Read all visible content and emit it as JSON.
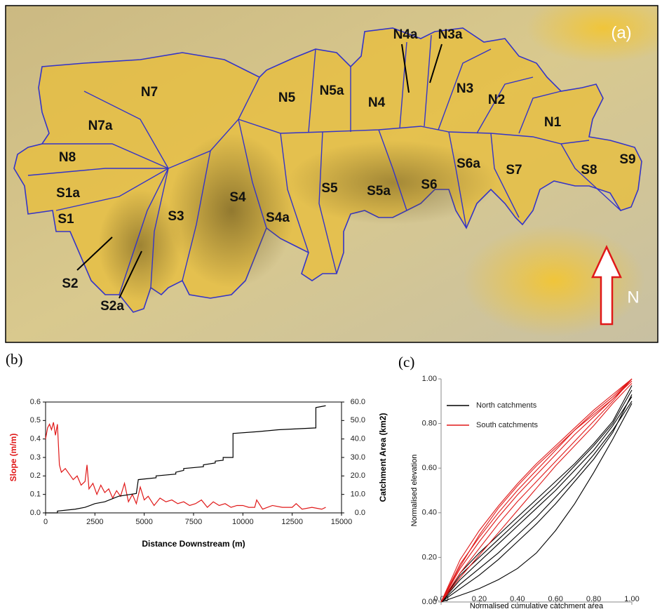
{
  "map": {
    "panel_label": "(a)",
    "north_label": "N",
    "catchment_labels": [
      "N7",
      "N7a",
      "N8",
      "S1a",
      "S1",
      "S2",
      "S2a",
      "S3",
      "S4",
      "S4a",
      "S5",
      "S5a",
      "S6",
      "S6a",
      "S7",
      "S8",
      "S9",
      "N1",
      "N2",
      "N3",
      "N3a",
      "N4",
      "N4a",
      "N5",
      "N5a"
    ]
  },
  "chart_data": [
    {
      "type": "line",
      "panel_label": "(b)",
      "xlabel": "Distance Downstream (m)",
      "ylabel": "Slope (m/m)",
      "y2label": "Catchment Area (km2)",
      "xlim": [
        0,
        15000
      ],
      "xticks": [
        0,
        2500,
        5000,
        7500,
        10000,
        12500,
        15000
      ],
      "ylim": [
        0,
        0.6
      ],
      "yticks": [
        {
          "value": 0,
          "label": "0.0"
        },
        0.1,
        0.2,
        0.3,
        0.4,
        0.5,
        0.6
      ],
      "y2lim": [
        0,
        60
      ],
      "y2ticks": [
        {
          "value": 0,
          "label": "0.0"
        },
        {
          "value": 10,
          "label": "10.0"
        },
        {
          "value": 20,
          "label": "20.0"
        },
        {
          "value": 30,
          "label": "30.0"
        },
        {
          "value": 40,
          "label": "40.0"
        },
        {
          "value": 50,
          "label": "50.0"
        },
        {
          "value": 60,
          "label": "60.0"
        }
      ],
      "series": [
        {
          "color": "#e01818",
          "x": [
            0,
            100,
            200,
            300,
            400,
            500,
            600,
            700,
            800,
            1000,
            1200,
            1400,
            1600,
            1800,
            2000,
            2100,
            2200,
            2400,
            2600,
            2800,
            3000,
            3200,
            3400,
            3600,
            3800,
            4000,
            4200,
            4400,
            4600,
            4800,
            5000,
            5200,
            5500,
            5800,
            6100,
            6400,
            6700,
            7000,
            7300,
            7600,
            7900,
            8200,
            8500,
            8800,
            9100,
            9400,
            9700,
            10000,
            10300,
            10600,
            10700,
            11000,
            11500,
            12000,
            12500,
            12700,
            13000,
            13500,
            14000,
            14200
          ],
          "values": [
            0.4,
            0.46,
            0.48,
            0.45,
            0.49,
            0.42,
            0.48,
            0.26,
            0.22,
            0.24,
            0.21,
            0.18,
            0.2,
            0.15,
            0.17,
            0.26,
            0.13,
            0.16,
            0.1,
            0.15,
            0.11,
            0.13,
            0.08,
            0.12,
            0.09,
            0.16,
            0.06,
            0.1,
            0.05,
            0.14,
            0.07,
            0.09,
            0.04,
            0.08,
            0.06,
            0.07,
            0.05,
            0.06,
            0.04,
            0.05,
            0.07,
            0.03,
            0.06,
            0.04,
            0.05,
            0.03,
            0.04,
            0.04,
            0.03,
            0.03,
            0.07,
            0.02,
            0.04,
            0.03,
            0.03,
            0.05,
            0.02,
            0.03,
            0.02,
            0.03
          ]
        },
        {
          "color": "#000000",
          "axis": "y2",
          "x": [
            0,
            600,
            600,
            1500,
            2000,
            2500,
            3000,
            3700,
            4600,
            4700,
            5600,
            5600,
            6600,
            6600,
            7000,
            7000,
            8000,
            8000,
            8600,
            8600,
            9000,
            9000,
            9500,
            9500,
            10800,
            11800,
            13700,
            13700,
            14200
          ],
          "values": [
            0,
            0,
            1,
            2,
            3,
            5,
            6,
            9,
            10.5,
            18,
            19,
            20,
            21,
            22,
            23,
            24,
            25,
            26,
            27,
            28,
            28.5,
            30,
            30,
            43,
            44,
            45,
            46,
            57,
            58
          ]
        }
      ]
    },
    {
      "type": "curves",
      "panel_label": "(c)",
      "xlabel": "Normalised cumulative catchment area",
      "ylabel": "Normalised elevation",
      "xlim": [
        0,
        1
      ],
      "ylim": [
        0,
        1
      ],
      "legend": "upper left",
      "xticks": [
        {
          "value": 0,
          "label": "0.00"
        },
        {
          "value": 0.2,
          "label": "0.20"
        },
        {
          "value": 0.4,
          "label": "0.40"
        },
        {
          "value": 0.6,
          "label": "0.60"
        },
        {
          "value": 0.8,
          "label": "0.80"
        },
        {
          "value": 1,
          "label": "1.00"
        }
      ],
      "yticks": [
        {
          "value": 0,
          "label": "0.00"
        },
        {
          "value": 0.2,
          "label": "0.20"
        },
        {
          "value": 0.4,
          "label": "0.40"
        },
        {
          "value": 0.6,
          "label": "0.60"
        },
        {
          "value": 0.8,
          "label": "0.80"
        },
        {
          "value": 1,
          "label": "1.00"
        }
      ],
      "x": [
        0,
        0.1,
        0.2,
        0.3,
        0.4,
        0.5,
        0.6,
        0.7,
        0.8,
        0.9,
        1
      ],
      "series": [
        {
          "name": "North catchments",
          "color": "#000000",
          "curves": [
            [
              0,
              0.03,
              0.06,
              0.1,
              0.15,
              0.22,
              0.32,
              0.44,
              0.58,
              0.73,
              0.89
            ],
            [
              0,
              0.1,
              0.18,
              0.26,
              0.34,
              0.42,
              0.5,
              0.59,
              0.68,
              0.79,
              0.92
            ],
            [
              0,
              0.12,
              0.2,
              0.28,
              0.36,
              0.44,
              0.52,
              0.61,
              0.7,
              0.8,
              0.95
            ],
            [
              0,
              0.08,
              0.15,
              0.22,
              0.3,
              0.38,
              0.47,
              0.56,
              0.66,
              0.77,
              0.9
            ],
            [
              0,
              0.13,
              0.22,
              0.3,
              0.38,
              0.46,
              0.54,
              0.62,
              0.71,
              0.81,
              0.97
            ],
            [
              0,
              0.06,
              0.12,
              0.19,
              0.27,
              0.35,
              0.44,
              0.54,
              0.64,
              0.76,
              0.93
            ]
          ]
        },
        {
          "name": "South catchments",
          "color": "#e01818",
          "curves": [
            [
              0,
              0.19,
              0.32,
              0.43,
              0.53,
              0.62,
              0.7,
              0.78,
              0.86,
              0.93,
              1
            ],
            [
              0,
              0.15,
              0.27,
              0.38,
              0.48,
              0.57,
              0.66,
              0.75,
              0.83,
              0.91,
              1
            ],
            [
              0,
              0.13,
              0.24,
              0.35,
              0.45,
              0.54,
              0.63,
              0.72,
              0.81,
              0.9,
              1
            ],
            [
              0,
              0.17,
              0.29,
              0.4,
              0.5,
              0.59,
              0.68,
              0.77,
              0.85,
              0.92,
              1
            ],
            [
              0,
              0.11,
              0.21,
              0.31,
              0.41,
              0.51,
              0.61,
              0.7,
              0.79,
              0.89,
              0.98
            ],
            [
              0,
              0.16,
              0.3,
              0.42,
              0.52,
              0.61,
              0.69,
              0.77,
              0.84,
              0.91,
              0.99
            ]
          ]
        }
      ]
    }
  ]
}
